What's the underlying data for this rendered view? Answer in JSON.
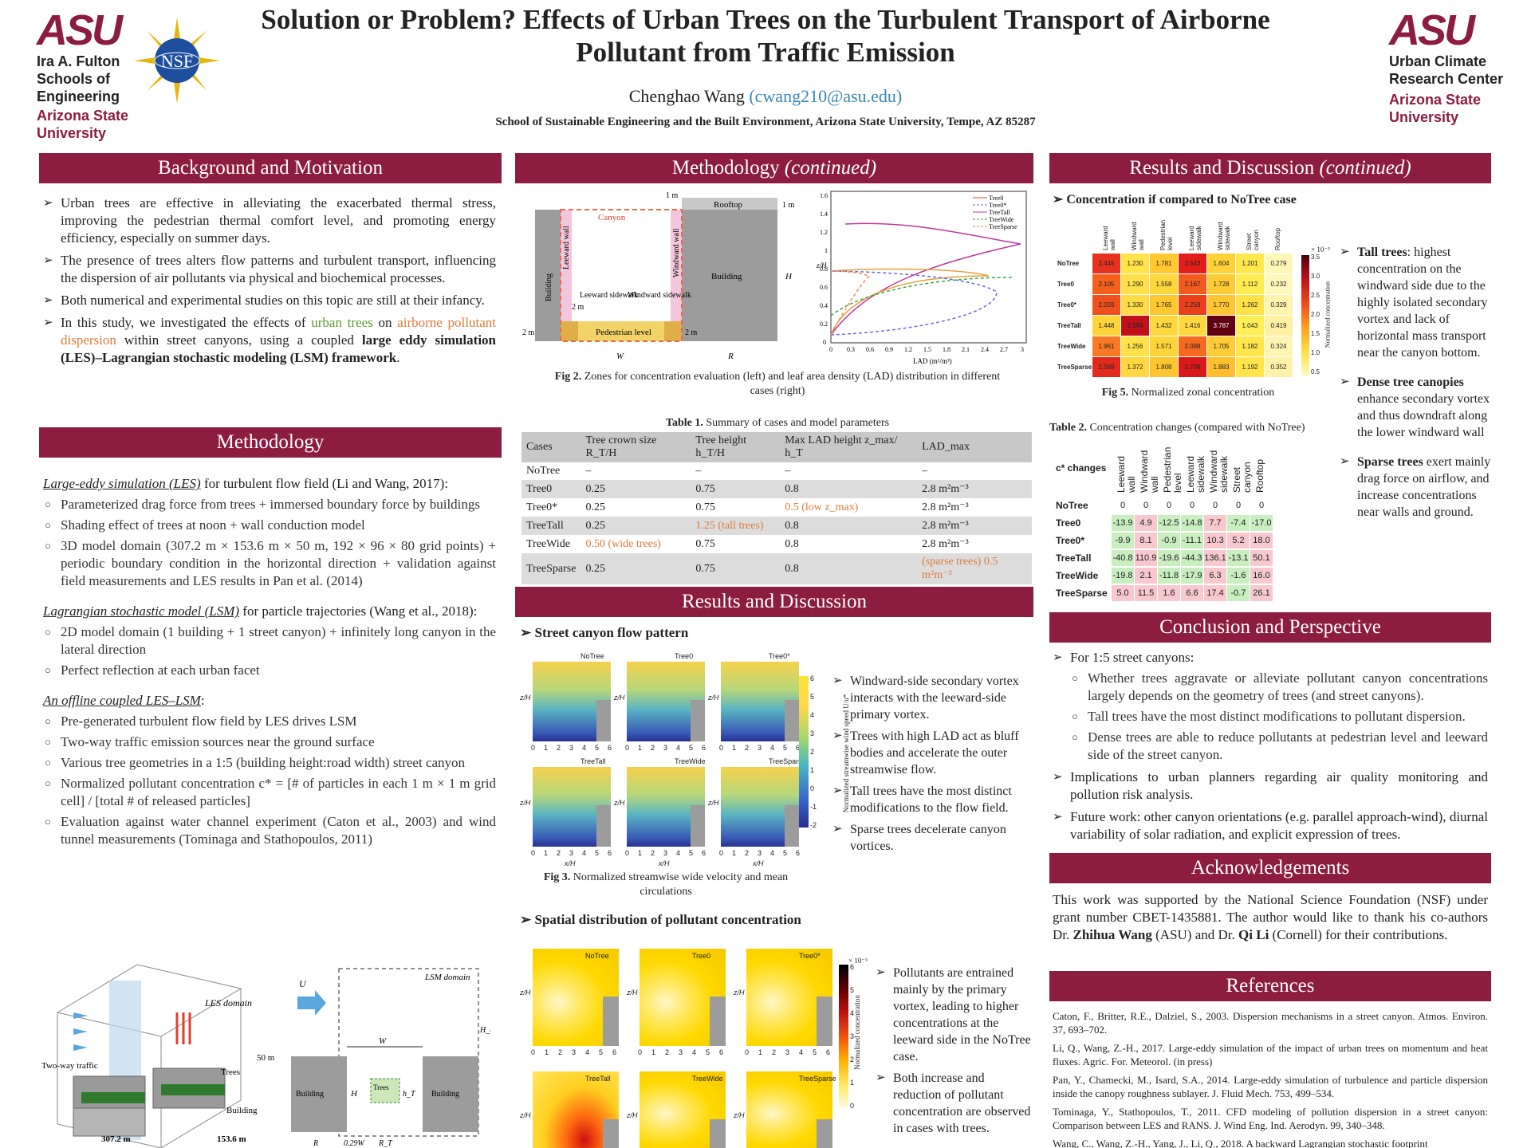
{
  "header": {
    "title_line1": "Solution or Problem? Effects of Urban Trees on the Turbulent Transport of Airborne",
    "title_line2": "Pollutant from Traffic Emission",
    "author": "Chenghao Wang",
    "email": "(cwang210@asu.edu)",
    "affiliation": "School of Sustainable Engineering and the Built Environment, Arizona State University, Tempe, AZ 85287",
    "left_logo": {
      "mark": "ASU",
      "lines": [
        "Ira A. Fulton",
        "Schools of",
        "Engineering"
      ],
      "sub": [
        "Arizona State",
        "University"
      ]
    },
    "nsf_logo": "NSF",
    "right_logo": {
      "mark": "ASU",
      "lines": [
        "Urban Climate",
        "Research Center"
      ],
      "sub": [
        "Arizona State",
        "University"
      ]
    }
  },
  "sections": {
    "background": "Background and Motivation",
    "methodology": "Methodology",
    "methodology_cont": "Methodology ",
    "continued": "(continued)",
    "results": "Results and Discussion",
    "results_cont": "Results and Discussion ",
    "conclusion": "Conclusion and Perspective",
    "ack": "Acknowledgements",
    "refs": "References"
  },
  "background_bullets": [
    "Urban trees are effective in alleviating the exacerbated thermal stress, improving the pedestrian thermal comfort level, and promoting energy efficiency, especially on summer days.",
    "The presence of trees alters flow patterns and turbulent transport, influencing the dispersion of air pollutants via physical and biochemical processes.",
    "Both numerical and experimental studies on this topic are still at their infancy."
  ],
  "bg_b4": {
    "a": "In this study, we investigated the effects of ",
    "b": "urban trees",
    "c": " on ",
    "d": "airborne pollutant dispersion",
    "e": " within street canyons, using a coupled ",
    "f": "large eddy simulation (LES)–Lagrangian stochastic modeling (LSM) framework",
    "g": "."
  },
  "les": {
    "title": "Large-eddy simulation (LES)",
    "rest": " for turbulent flow field (Li and Wang, 2017):",
    "items": [
      "Parameterized drag force from trees + immersed boundary force by buildings",
      "Shading effect of trees at noon + wall conduction model",
      "3D model domain (307.2 m × 153.6 m × 50 m, 192 × 96 × 80 grid points) + periodic boundary condition in the horizontal direction + validation against field measurements and LES results in Pan et al. (2014)"
    ]
  },
  "lsm": {
    "title": "Lagrangian stochastic model (LSM)",
    "rest": " for particle trajectories (Wang et al., 2018):",
    "items": [
      "2D model domain (1 building + 1 street canyon) + infinitely long canyon in the lateral direction",
      "Perfect reflection at each urban facet"
    ]
  },
  "coupled": {
    "title": "An offline coupled LES–LSM",
    "rest": ":",
    "items": [
      "Pre-generated turbulent flow field by LES drives LSM",
      "Two-way traffic emission sources near the ground surface",
      "Various tree geometries in a 1:5 (building height:road width) street canyon",
      "Normalized pollutant concentration c* = [# of particles in each 1 m × 1 m grid cell] / [total # of released particles]",
      "Evaluation against water channel experiment (Caton et al., 2003) and wind tunnel measurements (Tominaga and Stathopoulos, 2011)"
    ]
  },
  "fig1": {
    "les_domain": "LES domain",
    "lsm_domain": "LSM domain",
    "traffic": "Two-way traffic",
    "trees": "Trees",
    "building": "Building",
    "dims": [
      "307.2 m",
      "153.6 m",
      "50 m"
    ],
    "lsm_labels": [
      "U",
      "W",
      "H",
      "H_domain",
      "R",
      "0.29W",
      "R_T",
      "h_T",
      "Trees"
    ]
  },
  "fig2": {
    "caption_bold": "Fig 2.",
    "caption": " Zones for concentration evaluation (left) and leaf area density (LAD) distribution in different cases (right)",
    "zones": [
      "Canyon",
      "Rooftop",
      "Leeward wall",
      "Windward wall",
      "Building",
      "Building",
      "Leeward sidewalk",
      "Windward sidewalk",
      "Pedestrian level",
      "1 m",
      "1 m",
      "2 m",
      "2 m",
      "2 m",
      "W",
      "R",
      "H"
    ],
    "lad_legend": [
      "Tree0",
      "Tree0*",
      "TreeTall",
      "TreeWide",
      "TreeSparse"
    ],
    "lad_xlabel": "LAD (m²/m³)",
    "lad_ylabel": "z/H",
    "lad_xticks": [
      "0",
      "0.3",
      "0.6",
      "0.9",
      "1.2",
      "1.5",
      "1.8",
      "2.1",
      "2.4",
      "2.7",
      "3"
    ],
    "lad_yticks": [
      "0",
      "0.2",
      "0.4",
      "0.6",
      "0.8",
      "1",
      "1.2",
      "1.4",
      "1.6"
    ]
  },
  "table1": {
    "caption_bold": "Table 1.",
    "caption": " Summary of cases and model parameters",
    "headers": [
      "Cases",
      "Tree crown size R_T/H",
      "Tree height h_T/H",
      "Max LAD height z_max/ h_T",
      "LAD_max"
    ],
    "rows": [
      [
        "NoTree",
        "–",
        "–",
        "–",
        "–"
      ],
      [
        "Tree0",
        "0.25",
        "0.75",
        "0.8",
        "2.8 m²m⁻³"
      ],
      [
        "Tree0*",
        "0.25",
        "0.75",
        "0.5 (low z_max)",
        "2.8 m²m⁻³"
      ],
      [
        "TreeTall",
        "0.25",
        "1.25 (tall trees)",
        "0.8",
        "2.8 m²m⁻³"
      ],
      [
        "TreeWide",
        "0.50 (wide trees)",
        "0.75",
        "0.8",
        "2.8 m²m⁻³"
      ],
      [
        "TreeSparse",
        "0.25",
        "0.75",
        "0.8",
        "(sparse trees)  0.5 m²m⁻³"
      ]
    ]
  },
  "flow": {
    "title": "Street canyon flow pattern",
    "panels": [
      "NoTree",
      "Tree0",
      "Tree0*",
      "TreeTall",
      "TreeWide",
      "TreeSparse"
    ],
    "xticks": [
      "0",
      "1",
      "2",
      "3",
      "4",
      "5",
      "6"
    ],
    "ylabel": "z/H",
    "xlabel": "x/H",
    "cbar_label": "Normalized streamwise wind speed U/u*",
    "cbar_ticks": [
      "6",
      "5",
      "4",
      "3",
      "2",
      "1",
      "0",
      "-1",
      "-2"
    ],
    "bullets": [
      "Windward-side secondary vortex interacts with the leeward-side primary vortex.",
      "Trees with high LAD act as bluff bodies and accelerate the outer streamwise flow.",
      "Tall trees have the most distinct modifications to the flow field.",
      "Sparse trees decelerate canyon vortices."
    ],
    "caption_bold": "Fig 3.",
    "caption": " Normalized streamwise wide velocity and mean circulations"
  },
  "conc": {
    "title": "Spatial distribution of pollutant concentration",
    "panels": [
      "NoTree",
      "Tree0",
      "Tree0*",
      "TreeTall",
      "TreeWide",
      "TreeSparse"
    ],
    "cbar_label": "Normalized concentration",
    "cbar_exp": "× 10⁻³",
    "cbar_ticks": [
      "6",
      "5",
      "4",
      "3",
      "2",
      "1",
      "0"
    ],
    "bullets": [
      "Pollutants are entrained mainly by the primary vortex, leading to higher concentrations at the leeward side in the NoTree case.",
      "Both increase and reduction of pollutant concentration are observed in cases with trees."
    ]
  },
  "heatmap": {
    "title": "Concentration if compared to NoTree case",
    "cols": [
      "Leeward wall",
      "Windward wall",
      "Pedestrian level",
      "Leeward sidewalk",
      "Windward sidewalk",
      "Street canyon",
      "Rooftop"
    ],
    "rows": [
      "NoTree",
      "Tree0",
      "Tree0*",
      "TreeTall",
      "TreeWide",
      "TreeSparse"
    ],
    "values": [
      [
        "2.445",
        "1.230",
        "1.781",
        "2.543",
        "1.604",
        "1.201",
        "0.279"
      ],
      [
        "2.105",
        "1.290",
        "1.558",
        "2.167",
        "1.728",
        "1.112",
        "0.232"
      ],
      [
        "2.203",
        "1.330",
        "1.765",
        "2.259",
        "1.770",
        "1.262",
        "0.329"
      ],
      [
        "1.448",
        "2.594",
        "1.432",
        "1.416",
        "3.787",
        "1.043",
        "0.419"
      ],
      [
        "1.961",
        "1.256",
        "1.571",
        "2.088",
        "1.705",
        "1.182",
        "0.324"
      ],
      [
        "2.569",
        "1.372",
        "1.808",
        "2.709",
        "1.883",
        "1.192",
        "0.352"
      ]
    ],
    "colors": [
      [
        "#e8321f",
        "#ffe54a",
        "#ffc730",
        "#e31e1a",
        "#ffd23a",
        "#ffe84e",
        "#fff7b8"
      ],
      [
        "#f4611f",
        "#ffe04a",
        "#ffd63c",
        "#f35a1e",
        "#ffcb36",
        "#ffeb52",
        "#fff8bd"
      ],
      [
        "#f04f1e",
        "#ffdc45",
        "#ffc831",
        "#ec401d",
        "#ffc631",
        "#ffe24a",
        "#fff4ae"
      ],
      [
        "#ffd43a",
        "#c0101a",
        "#ffd83f",
        "#ffd73e",
        "#600010",
        "#ffee58",
        "#fff0a2"
      ],
      [
        "#f97a24",
        "#ffe24a",
        "#ffd43a",
        "#f66a20",
        "#ffcb36",
        "#ffe64c",
        "#fff5b2"
      ],
      [
        "#e22b1d",
        "#ffd740",
        "#ffc530",
        "#d9191a",
        "#ffbe2e",
        "#ffe54b",
        "#fff2a8"
      ]
    ],
    "cbar_exp": "× 10⁻³",
    "cbar_label": "Normalized concentration",
    "cbar_ticks": [
      "3.5",
      "3.0",
      "2.5",
      "2.0",
      "1.5",
      "1.0",
      "0.5"
    ],
    "caption_bold": "Fig 5.",
    "caption": " Normalized zonal concentration"
  },
  "table2": {
    "caption_bold": "Table 2.",
    "caption": " Concentration changes (compared with NoTree)",
    "corner": "c* changes",
    "cols": [
      "Leeward wall",
      "Windward wall",
      "Pedestrian level",
      "Leeward sidewalk",
      "Windward sidewalk",
      "Street canyon",
      "Rooftop"
    ],
    "rows": [
      {
        "name": "NoTree",
        "vals": [
          "0",
          "0",
          "0",
          "0",
          "0",
          "0",
          "0"
        ]
      },
      {
        "name": "Tree0",
        "vals": [
          "-13.9",
          "4.9",
          "-12.5",
          "-14.8",
          "7.7",
          "-7.4",
          "-17.0"
        ]
      },
      {
        "name": "Tree0*",
        "vals": [
          "-9.9",
          "8.1",
          "-0.9",
          "-11.1",
          "10.3",
          "5.2",
          "18.0"
        ]
      },
      {
        "name": "TreeTall",
        "vals": [
          "-40.8",
          "110.9",
          "-19.6",
          "-44.3",
          "136.1",
          "-13.1",
          "50.1"
        ]
      },
      {
        "name": "TreeWide",
        "vals": [
          "-19.8",
          "2.1",
          "-11.8",
          "-17.9",
          "6.3",
          "-1.6",
          "16.0"
        ]
      },
      {
        "name": "TreeSparse",
        "vals": [
          "5.0",
          "11.5",
          "1.6",
          "6.6",
          "17.4",
          "-0.7",
          "26.1"
        ]
      }
    ]
  },
  "side_notes": [
    {
      "bold": "Tall trees",
      "text": ": highest concentration on the windward side due to the highly isolated secondary vortex and lack of horizontal mass transport near the canyon bottom."
    },
    {
      "bold": "Dense tree canopies",
      "text": " enhance secondary vortex and thus downdraft along the lower windward wall"
    },
    {
      "bold": "Sparse trees",
      "text": " exert mainly drag force on airflow, and increase concentrations near walls and ground."
    }
  ],
  "conclusion": {
    "b1": "For 1:5 street canyons:",
    "sub": [
      "Whether trees aggravate or alleviate pollutant canyon concentrations largely depends on the geometry of trees (and street canyons).",
      "Tall trees have the most distinct modifications to pollutant dispersion.",
      "Dense trees are able to reduce pollutants at pedestrian level and leeward side of the street canyon."
    ],
    "b2": "Implications to urban planners regarding air quality monitoring and pollution risk analysis.",
    "b3": "Future work: other canyon orientations (e.g. parallel approach-wind), diurnal variability of solar radiation, and explicit expression of trees."
  },
  "ack": {
    "a": "This work was supported by the National Science Foundation (NSF) under grant number CBET-1435881. The author would like to thank his co-authors Dr. ",
    "b": "Zhihua Wang",
    "c": " (ASU) and Dr. ",
    "d": "Qi Li",
    "e": " (Cornell) for their contributions."
  },
  "references": [
    "Caton, F., Britter, R.E., Dalziel, S., 2003. Dispersion mechanisms in a street canyon. Atmos. Environ. 37, 693–702.",
    "Li, Q., Wang, Z.-H., 2017. Large-eddy simulation of the impact of urban trees on momentum and heat fluxes. Agric. For. Meteorol. (in press)",
    "Pan, Y., Chamecki, M., Isard, S.A., 2014. Large-eddy simulation of turbulence and particle dispersion inside the canopy roughness sublayer. J. Fluid Mech. 753, 499–534.",
    "Tominaga, Y., Stathopoulos, T., 2011. CFD modeling of pollution dispersion in a street canyon: Comparison between LES and RANS. J. Wind Eng. Ind. Aerodyn. 99, 340–348.",
    "Wang, C., Wang, Z.-H., Yang, J., Li, Q., 2018. A backward Lagrangian stochastic footprint"
  ],
  "colors": {
    "maroon": "#8c1d40",
    "gold": "#ffc627",
    "green": "#5b9a2e",
    "orange": "#e07a3a"
  }
}
